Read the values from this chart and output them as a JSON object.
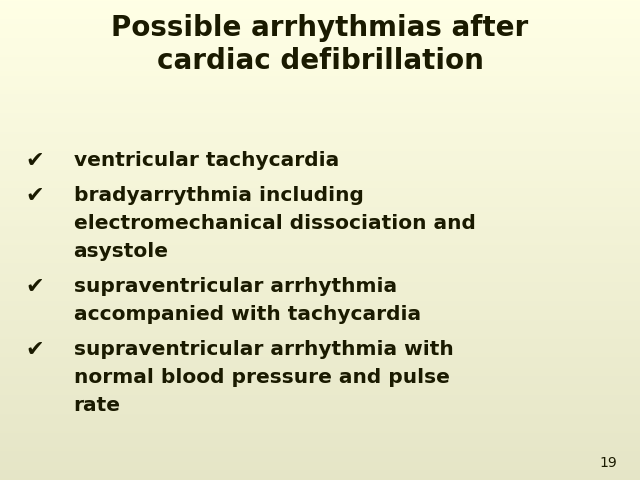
{
  "title_line1": "Possible arrhythmias after",
  "title_line2": "cardiac defibrillation",
  "title_fontsize": 20,
  "title_color": "#1a1a00",
  "background_top": "#ffffee",
  "background_bottom": "#e8e8c8",
  "bullet_char": "✔",
  "bullet_color": "#1a1a00",
  "text_color": "#1a1a00",
  "text_fontsize": 14.5,
  "bullet_fontsize": 16,
  "page_number": "19",
  "page_number_fontsize": 10,
  "items": [
    {
      "lines": [
        "ventricular tachycardia"
      ]
    },
    {
      "lines": [
        "bradyarrythmia including",
        "electromechanical dissociation and",
        "asystole"
      ]
    },
    {
      "lines": [
        "supraventricular arrhythmia",
        "accompanied with tachycardia"
      ]
    },
    {
      "lines": [
        "supraventricular arrhythmia with",
        "normal blood pressure and pulse",
        "rate"
      ]
    }
  ]
}
